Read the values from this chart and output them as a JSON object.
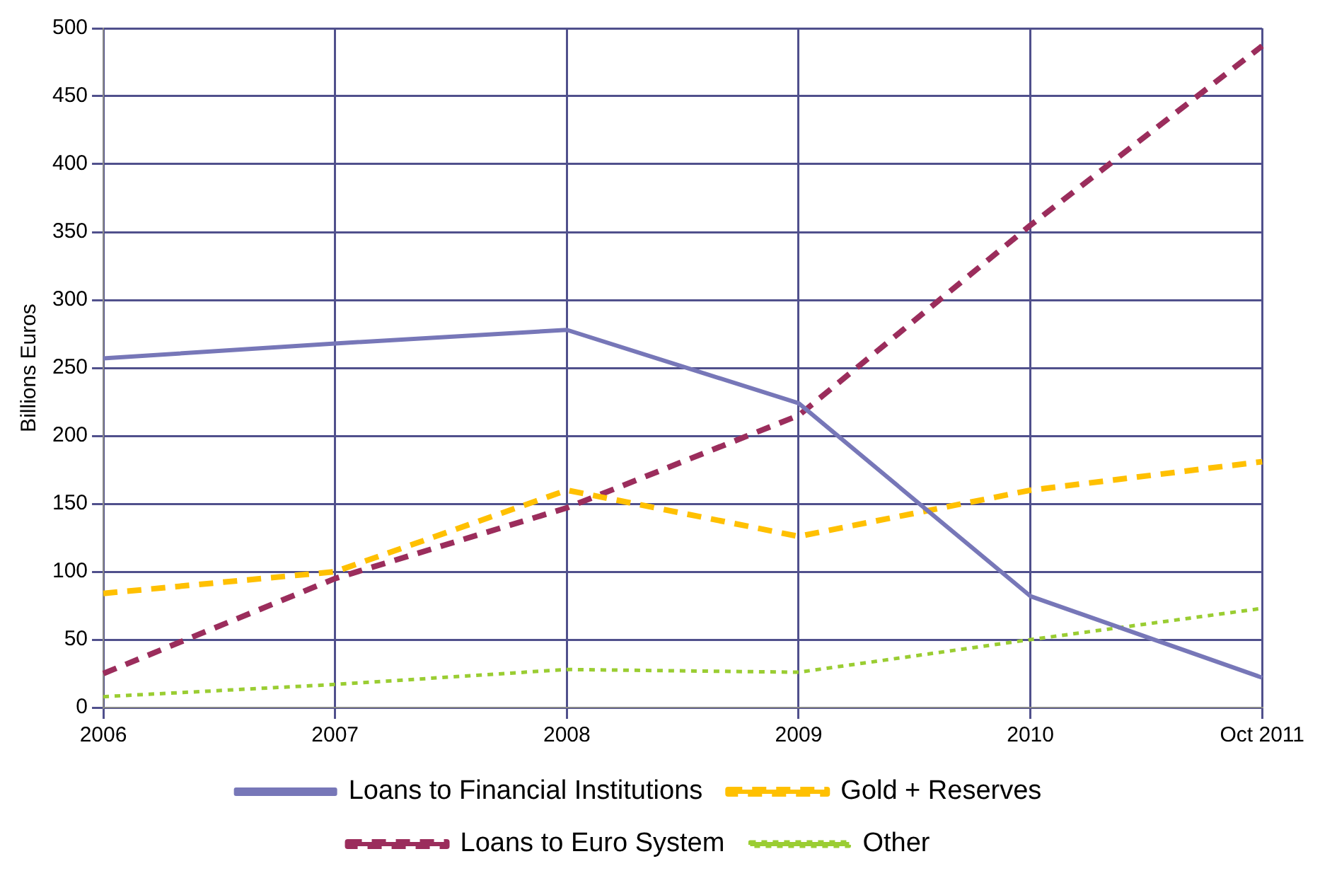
{
  "chart_data": {
    "type": "line",
    "ylabel": "Billions Euros",
    "categories": [
      "2006",
      "2007",
      "2008",
      "2009",
      "2010",
      "Oct 2011"
    ],
    "ylim": [
      0,
      500
    ],
    "yticks": [
      0,
      50,
      100,
      150,
      200,
      250,
      300,
      350,
      400,
      450,
      500
    ],
    "grid": true,
    "legend": "bottom",
    "marker": "none",
    "series": [
      {
        "name": "Loans to Financial Institutions",
        "color": "#7777b8",
        "line_style": "solid",
        "values": [
          257,
          268,
          278,
          224,
          82,
          22
        ]
      },
      {
        "name": "Gold + Reserves",
        "color": "#ffc000",
        "line_style": "dashed",
        "values": [
          84,
          100,
          160,
          126,
          160,
          181
        ]
      },
      {
        "name": "Loans to Euro System",
        "color": "#9b2d5c",
        "line_style": "dashed",
        "values": [
          25,
          95,
          147,
          215,
          355,
          487
        ]
      },
      {
        "name": "Other",
        "color": "#9acd32",
        "line_style": "dotted",
        "values": [
          8,
          17,
          28,
          26,
          50,
          73
        ]
      }
    ]
  }
}
